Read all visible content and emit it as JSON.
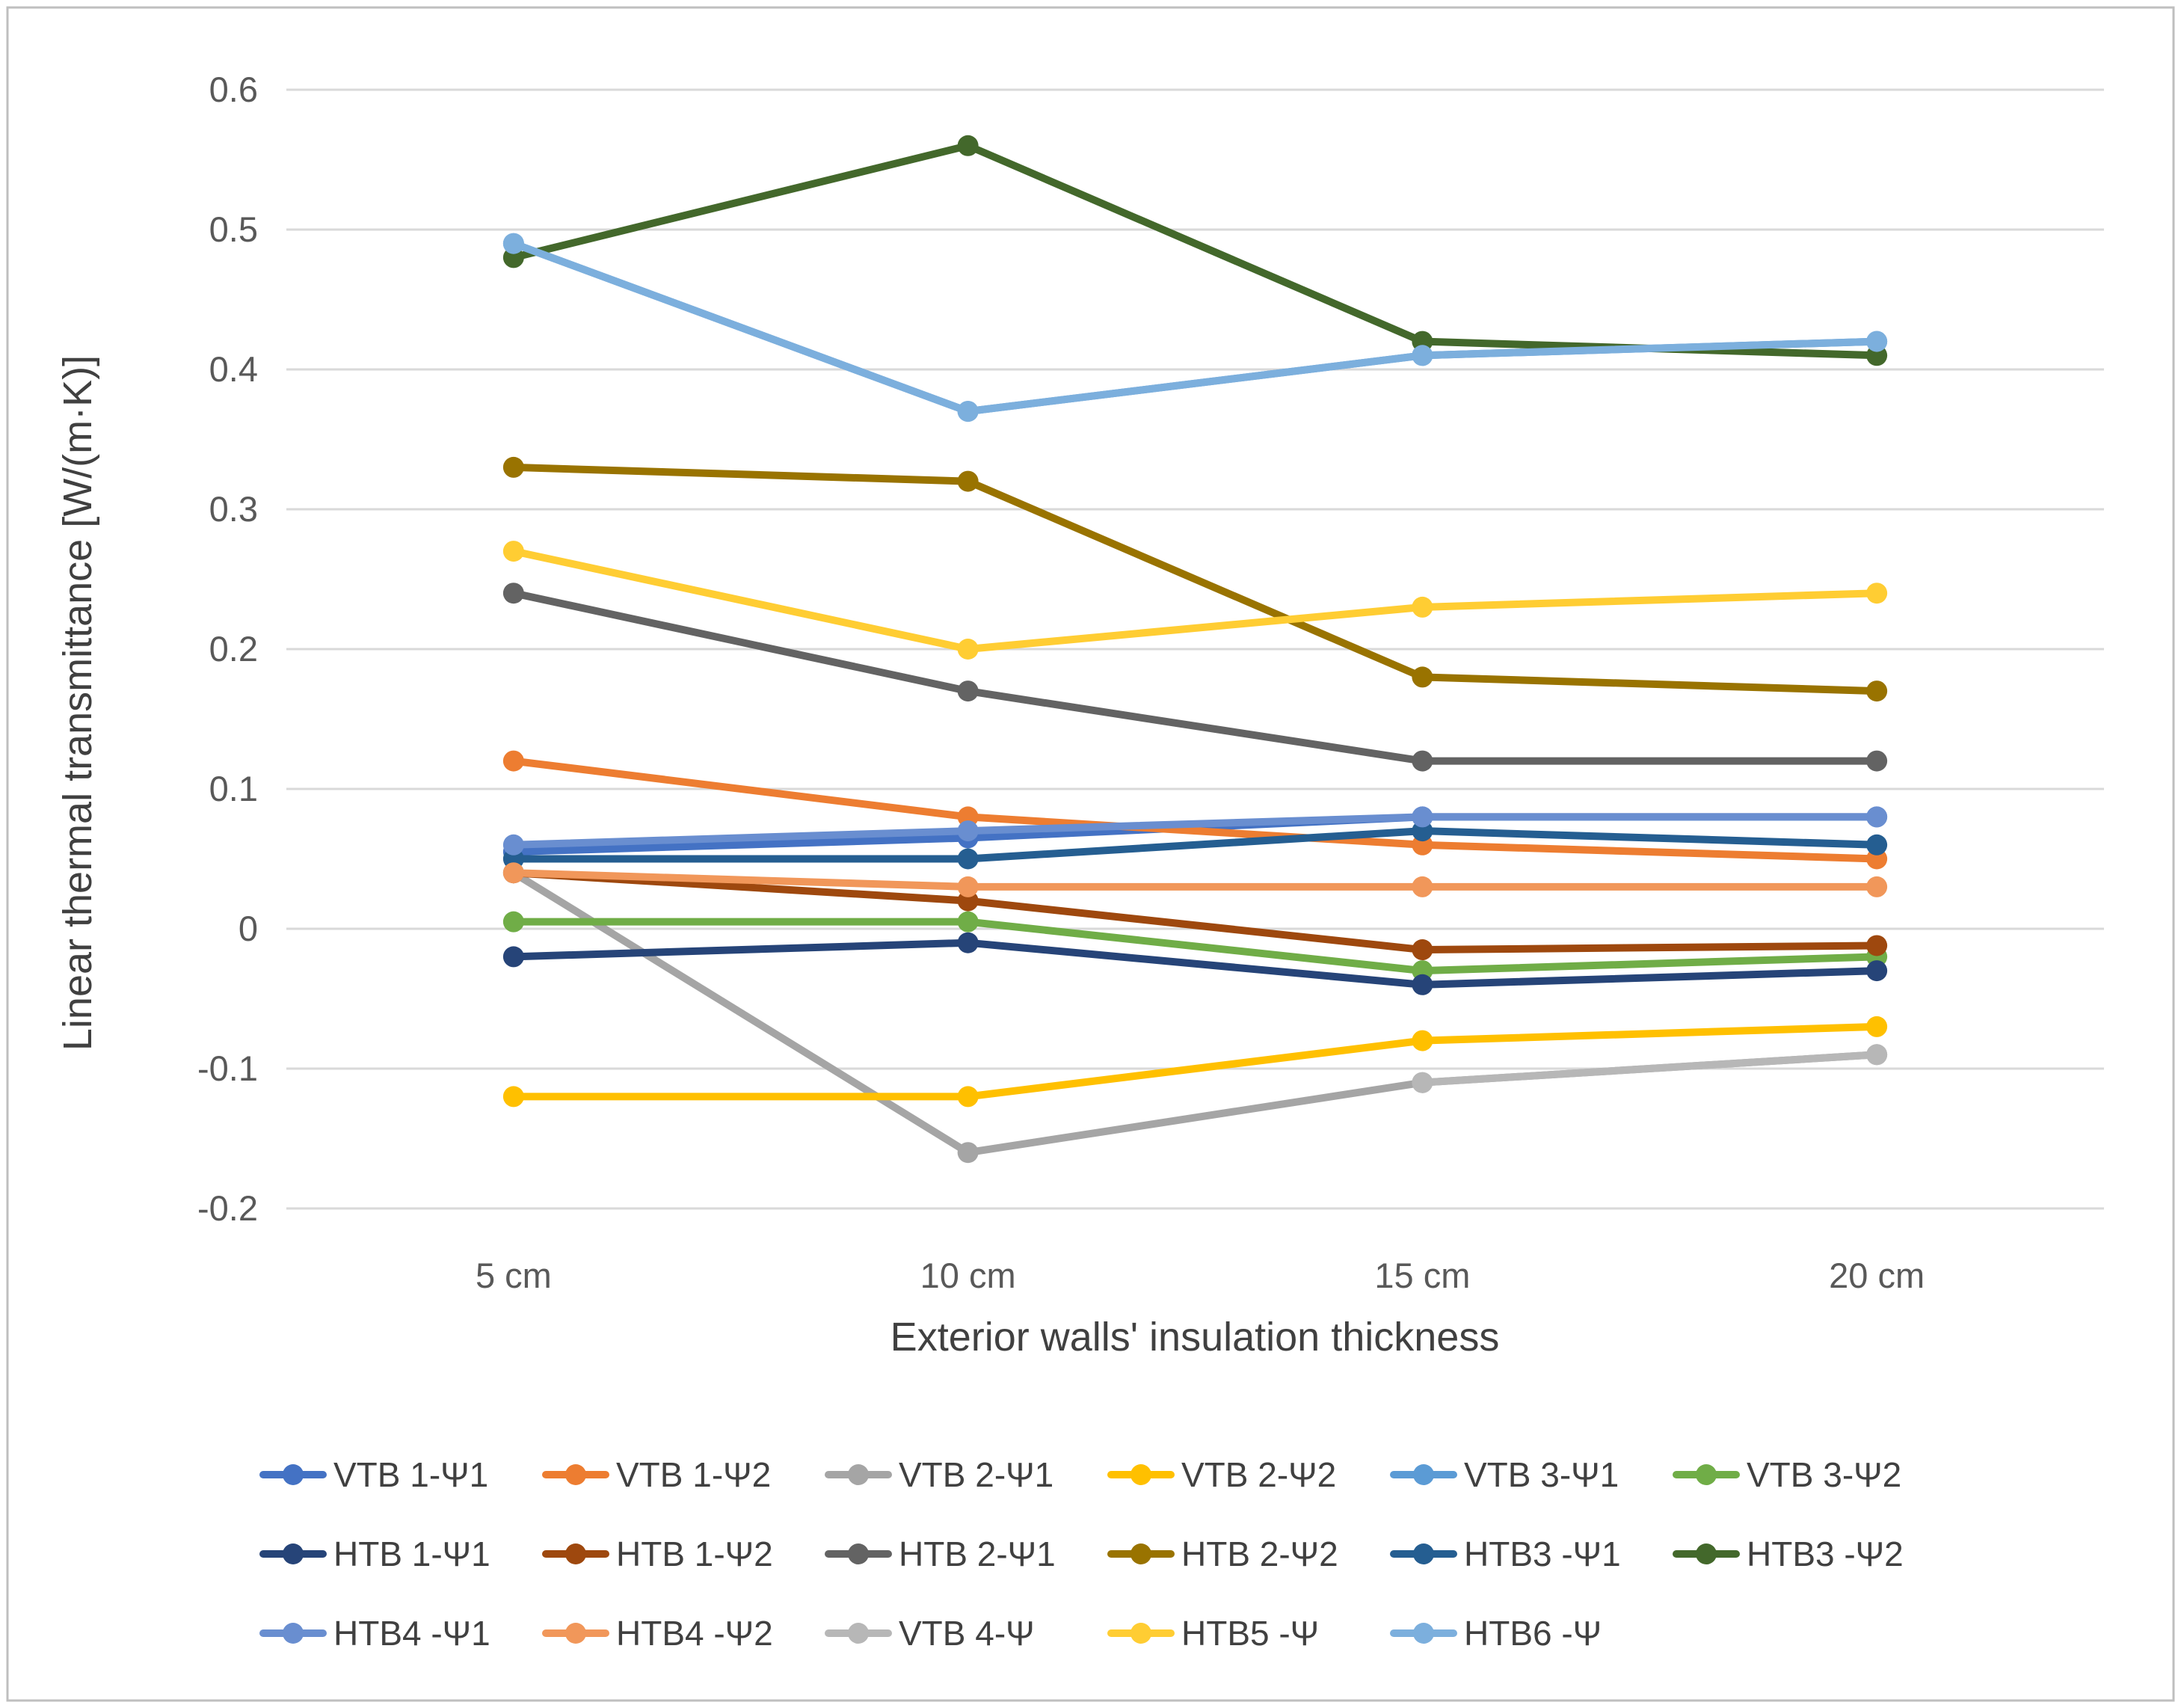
{
  "figure": {
    "background": "#FFFFFF",
    "border_color": "#BFBFBF",
    "gridline_color": "#D9D9D9"
  },
  "chart_data": {
    "type": "line",
    "title": "",
    "xlabel": "Exterior walls' insulation thickness",
    "ylabel": "Linear thermal transmittance [W/(m·K)]",
    "categories": [
      "5 cm",
      "10 cm",
      "15 cm",
      "20 cm"
    ],
    "y_tick_labels": [
      "0.6",
      "0.5",
      "0.4",
      "0.3",
      "0.2",
      "0.1",
      "0",
      "-0.1",
      "-0.2"
    ],
    "y_tick_values": [
      0.6,
      0.5,
      0.4,
      0.3,
      0.2,
      0.1,
      0,
      -0.1,
      -0.2
    ],
    "ylim": [
      -0.2,
      0.6
    ],
    "grid": true,
    "legend_position": "bottom",
    "legend_row_sizes": [
      6,
      6,
      5
    ],
    "series": [
      {
        "name": "VTB 1-Ψ1",
        "color": "#4472C4",
        "values": [
          0.055,
          0.065,
          0.08,
          0.08
        ]
      },
      {
        "name": "VTB 1-Ψ2",
        "color": "#ED7D31",
        "values": [
          0.12,
          0.08,
          0.06,
          0.05
        ]
      },
      {
        "name": "VTB 2-Ψ1",
        "color": "#A5A5A5",
        "values": [
          0.04,
          -0.16,
          -0.11,
          -0.09
        ]
      },
      {
        "name": "VTB 2-Ψ2",
        "color": "#FFC000",
        "values": [
          -0.12,
          -0.12,
          -0.08,
          -0.07
        ]
      },
      {
        "name": "VTB 3-Ψ1",
        "color": "#5B9BD5",
        "values": [
          0.49,
          0.37,
          0.41,
          0.42
        ]
      },
      {
        "name": "VTB 3-Ψ2",
        "color": "#70AD47",
        "values": [
          0.005,
          0.005,
          -0.03,
          -0.02
        ]
      },
      {
        "name": "HTB 1-Ψ1",
        "color": "#264478",
        "values": [
          -0.02,
          -0.01,
          -0.04,
          -0.03
        ]
      },
      {
        "name": "HTB 1-Ψ2",
        "color": "#9E480E",
        "values": [
          0.04,
          0.02,
          -0.015,
          -0.012
        ]
      },
      {
        "name": "HTB 2-Ψ1",
        "color": "#636363",
        "values": [
          0.24,
          0.17,
          0.12,
          0.12
        ]
      },
      {
        "name": "HTB 2-Ψ2",
        "color": "#997300",
        "values": [
          0.33,
          0.32,
          0.18,
          0.17
        ]
      },
      {
        "name": "HTB3 -Ψ1",
        "color": "#255E91",
        "values": [
          0.05,
          0.05,
          0.07,
          0.06
        ]
      },
      {
        "name": "HTB3 -Ψ2",
        "color": "#43682B",
        "values": [
          0.48,
          0.56,
          0.42,
          0.41
        ]
      },
      {
        "name": "HTB4 -Ψ1",
        "color": "#698ED0",
        "values": [
          0.06,
          0.07,
          0.08,
          0.08
        ]
      },
      {
        "name": "HTB4 -Ψ2",
        "color": "#F1975A",
        "values": [
          0.04,
          0.03,
          0.03,
          0.03
        ]
      },
      {
        "name": "VTB 4-Ψ",
        "color": "#B7B7B7",
        "values": [
          null,
          null,
          -0.11,
          -0.09
        ]
      },
      {
        "name": "HTB5 -Ψ",
        "color": "#FFCD33",
        "values": [
          0.27,
          0.2,
          0.23,
          0.24
        ]
      },
      {
        "name": "HTB6 -Ψ",
        "color": "#7CAFDD",
        "values": [
          0.49,
          0.37,
          0.41,
          0.42
        ]
      }
    ]
  }
}
